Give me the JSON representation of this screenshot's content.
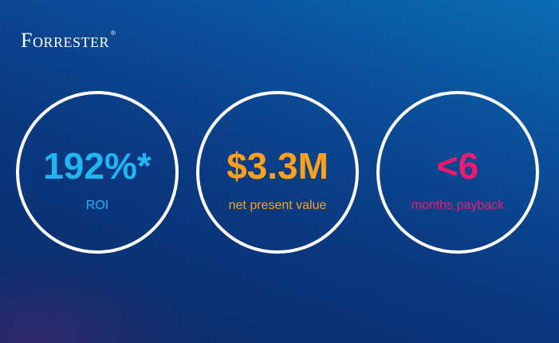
{
  "brand": {
    "name": "Forrester",
    "registered_mark": "®"
  },
  "metrics": [
    {
      "value": "192%*",
      "label": "ROI",
      "color": "#1fb6f2"
    },
    {
      "value": "$3.3M",
      "label": "net present value",
      "color": "#ffa11a"
    },
    {
      "value": "<6",
      "label": "months payback",
      "color": "#f0196f"
    }
  ],
  "colors": {
    "background_top": "#0a6db5",
    "background_bottom": "#0a2a68",
    "ring": "#ffffff"
  }
}
